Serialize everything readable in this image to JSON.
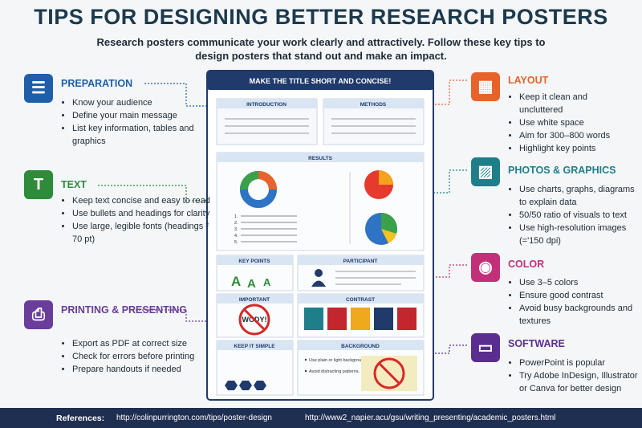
{
  "title": "TIPS FOR DESIGNING BETTER RESEARCH POSTERS",
  "subtitle": "Research posters communicate your work clearly and attractively. Follow these key tips to design posters that stand out and make an impact.",
  "left_sections": [
    {
      "title": "PREPARATION",
      "items": [
        "Know your audience",
        "Define your main message",
        "List key information, tables and graphics"
      ]
    },
    {
      "title": "TEXT",
      "items": [
        "Keep text concise and easy to read",
        "Use bullets and headings for clarity",
        "Use large, legible fonts (headings ² 70 pt)"
      ]
    },
    {
      "title": "PRINTING & PRESENTING",
      "items": [
        "Export as PDF at correct size",
        "Check for errors before printing",
        "Prepare handouts if needed"
      ]
    }
  ],
  "right_sections": [
    {
      "title": "LAYOUT",
      "items": [
        "Keep it clean and uncluttered",
        "Use white space",
        "Aim for 300–800 words",
        "Highlight key points"
      ]
    },
    {
      "title": "PHOTOS & GRAPHICS",
      "items": [
        "Use charts, graphs, diagrams to explain data",
        "50/50 ratio of visuals to text",
        "Use high-resolution images (='150 dpi)"
      ]
    },
    {
      "title": "COLOR",
      "items": [
        "Use 3–5 colors",
        "Ensure good contrast",
        "Avoid busy backgrounds and textures"
      ]
    },
    {
      "title": "SOFTWARE",
      "items": [
        "PowerPoint is popular",
        "Try Adobe InDesign, Illustrator or Canva for better design"
      ]
    }
  ],
  "poster": {
    "header": "MAKE THE TITLE SHORT AND CONCISE!",
    "introduction": "INTRODUCTION",
    "methods": "METHODS",
    "results": "RESULTS",
    "list_numbers": [
      "1.",
      "2.",
      "3.",
      "4.",
      "5."
    ],
    "key_points": "KEY POINTS",
    "key_letters": [
      "A",
      "A",
      "A"
    ],
    "participant": "PARTICIPANT",
    "important": "IMPORTANT",
    "important_sign": "WODY!",
    "contrast": "CONTRAST",
    "keep_simple": "KEEP IT SIMPLE",
    "background": "BACKGROUND",
    "background_items": [
      "Use plain or light backgrounds.",
      "Avoid distracting patterns."
    ]
  },
  "footer": {
    "label": "References:",
    "links": [
      "http://colinpurrington.com/tips/poster-design",
      "http://www2_napier.acu/gsu/writing_presenting/academic_posters.html"
    ]
  }
}
